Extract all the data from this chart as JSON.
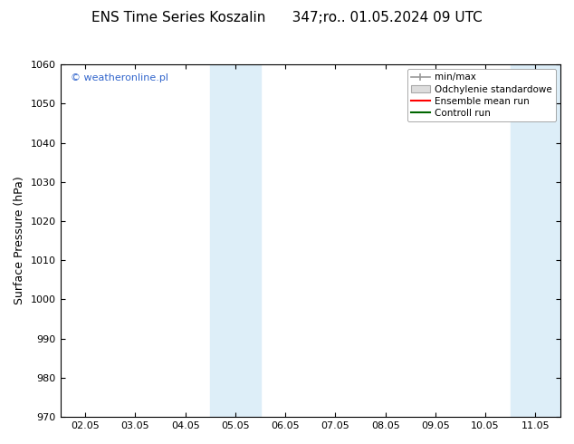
{
  "title": "ENS Time Series Koszalin      347;ro.. 01.05.2024 09 UTC",
  "ylabel": "Surface Pressure (hPa)",
  "ylim": [
    970,
    1060
  ],
  "yticks": [
    970,
    980,
    990,
    1000,
    1010,
    1020,
    1030,
    1040,
    1050,
    1060
  ],
  "xtick_labels": [
    "02.05",
    "03.05",
    "04.05",
    "05.05",
    "06.05",
    "07.05",
    "08.05",
    "09.05",
    "10.05",
    "11.05"
  ],
  "xlim": [
    0,
    9
  ],
  "shade_bands": [
    {
      "xstart": 2.5,
      "xend": 3.5
    },
    {
      "xstart": 8.5,
      "xend": 9.5
    }
  ],
  "shade_color": "#ddeef8",
  "background_color": "#ffffff",
  "plot_bg_color": "#ffffff",
  "legend_items": [
    {
      "label": "min/max",
      "type": "errorbar",
      "color": "#999999"
    },
    {
      "label": "Odchylenie standardowe",
      "type": "patch",
      "color": "#dddddd",
      "edgecolor": "#aaaaaa"
    },
    {
      "label": "Ensemble mean run",
      "type": "line",
      "color": "#ff0000"
    },
    {
      "label": "Controll run",
      "type": "line",
      "color": "#006600"
    }
  ],
  "watermark": "© weatheronline.pl",
  "watermark_color": "#3366cc",
  "title_fontsize": 11,
  "ylabel_fontsize": 9,
  "tick_fontsize": 8,
  "legend_fontsize": 7.5
}
